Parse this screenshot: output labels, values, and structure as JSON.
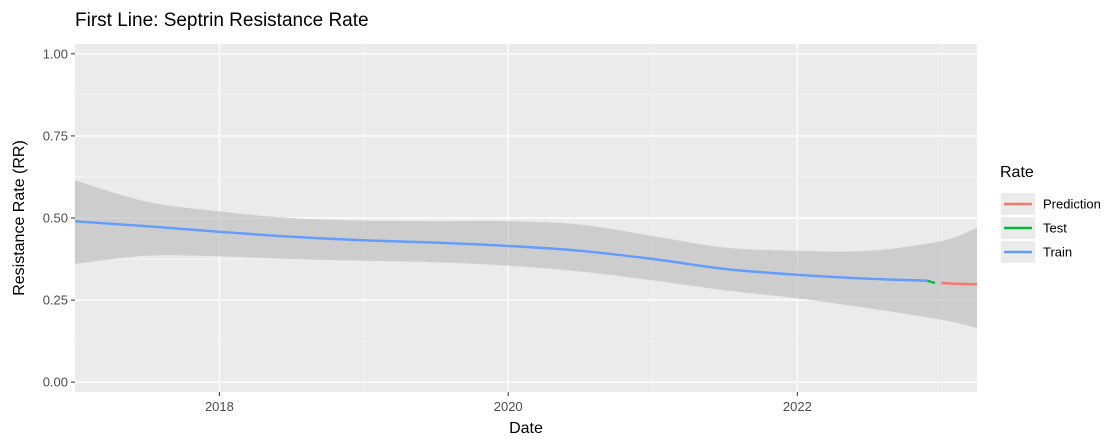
{
  "chart_data": {
    "type": "line",
    "title": "First Line: Septrin Resistance Rate",
    "xlabel": "Date",
    "ylabel": "Resistance Rate (RR)",
    "x_range": [
      "2017-01-01",
      "2023-03-31"
    ],
    "ylim": [
      -0.03,
      1.03
    ],
    "x_ticks": [
      {
        "date": "2018-01-01",
        "label": "2018"
      },
      {
        "date": "2020-01-01",
        "label": "2020"
      },
      {
        "date": "2022-01-01",
        "label": "2022"
      }
    ],
    "x_minor_ticks": [
      "2017-01-01",
      "2019-01-01",
      "2021-01-01",
      "2023-01-01"
    ],
    "y_ticks": [
      {
        "value": 0.0,
        "label": "0.00"
      },
      {
        "value": 0.25,
        "label": "0.25"
      },
      {
        "value": 0.5,
        "label": "0.50"
      },
      {
        "value": 0.75,
        "label": "0.75"
      },
      {
        "value": 1.0,
        "label": "1.00"
      }
    ],
    "y_minor_ticks": [
      0.125,
      0.375,
      0.625,
      0.875
    ],
    "grid": true,
    "legend": {
      "title": "Rate",
      "position": "right"
    },
    "series": [
      {
        "name": "Prediction",
        "color": "#F8766D",
        "points": [
          {
            "x": "2022-12-31",
            "y": 0.302
          },
          {
            "x": "2023-02-01",
            "y": 0.3
          },
          {
            "x": "2023-03-31",
            "y": 0.298
          }
        ]
      },
      {
        "name": "Test",
        "color": "#00BA38",
        "points": [
          {
            "x": "2022-11-25",
            "y": 0.309
          },
          {
            "x": "2022-12-15",
            "y": 0.302
          }
        ]
      },
      {
        "name": "Train",
        "color": "#619CFF",
        "points": [
          {
            "x": "2017-01-01",
            "y": 0.49
          },
          {
            "x": "2017-07-01",
            "y": 0.475
          },
          {
            "x": "2018-01-01",
            "y": 0.458
          },
          {
            "x": "2018-07-01",
            "y": 0.443
          },
          {
            "x": "2019-01-01",
            "y": 0.432
          },
          {
            "x": "2019-07-01",
            "y": 0.425
          },
          {
            "x": "2020-01-01",
            "y": 0.415
          },
          {
            "x": "2020-07-01",
            "y": 0.4
          },
          {
            "x": "2021-01-01",
            "y": 0.375
          },
          {
            "x": "2021-07-01",
            "y": 0.345
          },
          {
            "x": "2022-01-01",
            "y": 0.327
          },
          {
            "x": "2022-07-01",
            "y": 0.315
          },
          {
            "x": "2022-11-25",
            "y": 0.309
          }
        ]
      }
    ],
    "confidence_band": {
      "color": "#bdbdbd",
      "points": [
        {
          "x": "2017-01-01",
          "lower": 0.36,
          "upper": 0.615
        },
        {
          "x": "2017-07-01",
          "lower": 0.385,
          "upper": 0.55
        },
        {
          "x": "2018-01-01",
          "lower": 0.383,
          "upper": 0.52
        },
        {
          "x": "2018-07-01",
          "lower": 0.375,
          "upper": 0.5
        },
        {
          "x": "2019-01-01",
          "lower": 0.37,
          "upper": 0.492
        },
        {
          "x": "2019-07-01",
          "lower": 0.365,
          "upper": 0.49
        },
        {
          "x": "2020-01-01",
          "lower": 0.355,
          "upper": 0.49
        },
        {
          "x": "2020-07-01",
          "lower": 0.337,
          "upper": 0.48
        },
        {
          "x": "2021-01-01",
          "lower": 0.31,
          "upper": 0.445
        },
        {
          "x": "2021-07-01",
          "lower": 0.28,
          "upper": 0.41
        },
        {
          "x": "2022-01-01",
          "lower": 0.255,
          "upper": 0.4
        },
        {
          "x": "2022-07-01",
          "lower": 0.225,
          "upper": 0.4
        },
        {
          "x": "2023-01-01",
          "lower": 0.19,
          "upper": 0.43
        },
        {
          "x": "2023-03-31",
          "lower": 0.165,
          "upper": 0.47
        }
      ]
    }
  }
}
